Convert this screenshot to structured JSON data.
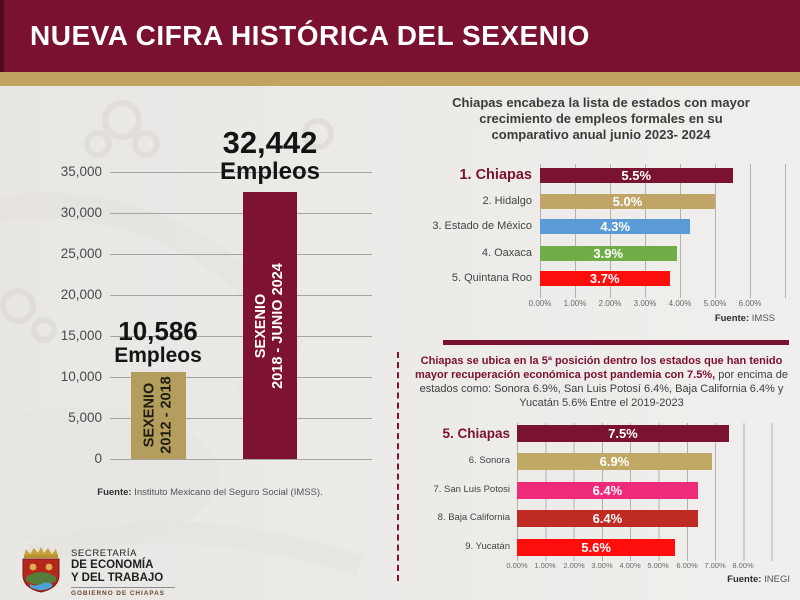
{
  "colors": {
    "header_bg": "#7a1130",
    "gold": "#c2a35f",
    "maroon": "#7a1130"
  },
  "header": {
    "title": "NUEVA CIFRA HISTÓRICA DEL SEXENIO"
  },
  "left_chart": {
    "ymax": 35000,
    "y_ticks": [
      "35,000",
      "30,000",
      "25,000",
      "20,000",
      "15,000",
      "10,000",
      "5,000",
      "0"
    ],
    "bars": [
      {
        "value": 10586,
        "value_label": "10,586",
        "unit_label": "Empleos",
        "bar_label_line1": "SEXENIO",
        "bar_label_line2": "2012 - 2018",
        "color": "#b49e5d",
        "text_color": "#1f1c12"
      },
      {
        "value": 32442,
        "value_label": "32,442",
        "unit_label": "Empleos",
        "bar_label_line1": "SEXENIO",
        "bar_label_line2": "2018 - JUNIO 2024",
        "color": "#7d1231",
        "text_color": "#ffffff"
      }
    ],
    "source_bold": "Fuente:",
    "source_text": " Instituto Mexicano del Seguro Social (IMSS)."
  },
  "top_chart": {
    "title_lines": [
      "Chiapas encabeza la lista de estados con mayor",
      "crecimiento de empleos formales en su",
      "comparativo anual junio 2023- 2024"
    ],
    "xmax": 6,
    "rows": [
      {
        "label": "1. Chiapas",
        "value": 5.5,
        "value_label": "5.5%",
        "color": "#7a132f",
        "label_color": "#7a1130"
      },
      {
        "label": "2. Hidalgo",
        "value": 5.0,
        "value_label": "5.0%",
        "color": "#c0a468",
        "label_color": "#444444"
      },
      {
        "label": "3. Estado de México",
        "value": 4.3,
        "value_label": "4.3%",
        "color": "#5b9bd5",
        "label_color": "#444444"
      },
      {
        "label": "4. Oaxaca",
        "value": 3.9,
        "value_label": "3.9%",
        "color": "#6fad47",
        "label_color": "#444444"
      },
      {
        "label": "5. Quintana Roo",
        "value": 3.7,
        "value_label": "3.7%",
        "color": "#fe0d0d",
        "label_color": "#444444"
      }
    ],
    "x_ticks": [
      "0.00%",
      "1.00%",
      "2.00%",
      "3.00%",
      "4.00%",
      "5.00%",
      "6.00%"
    ],
    "source_bold": "Fuente:",
    "source_text": " IMSS"
  },
  "middle_text": {
    "bold": "Chiapas se ubica en la 5ª posición dentro los estados que han tenido mayor recuperación económica post pandemia con 7.5%,",
    "regular": " por encima de estados como: Sonora 6.9%, San Luis Potosí 6.4%, Baja California 6.4% y Yucatán 5.6% Entre el 2019-2023"
  },
  "bottom_chart": {
    "xmax": 8,
    "rows": [
      {
        "label": "5. Chiapas",
        "value": 7.5,
        "value_label": "7.5%",
        "color": "#7a132f",
        "label_color": "#7a1130"
      },
      {
        "label": "6. Sonora",
        "value": 6.9,
        "value_label": "6.9%",
        "color": "#bfa964",
        "label_color": "#444444"
      },
      {
        "label": "7. San Luis Potosi",
        "value": 6.4,
        "value_label": "6.4%",
        "color": "#ee2a7b",
        "label_color": "#444444"
      },
      {
        "label": "8. Baja California",
        "value": 6.4,
        "value_label": "6.4%",
        "color": "#bf2a22",
        "label_color": "#444444"
      },
      {
        "label": "9. Yucatán",
        "value": 5.6,
        "value_label": "5.6%",
        "color": "#fe0d0d",
        "label_color": "#444444"
      }
    ],
    "x_ticks": [
      "0.00%",
      "1.00%",
      "2.00%",
      "3.00%",
      "4.00%",
      "5.00%",
      "6.00%",
      "7.00%",
      "8.00%"
    ],
    "source_bold": "Fuente:",
    "source_text": " INEGI"
  },
  "logo": {
    "line1": "SECRETARÍA",
    "line2": "DE ECONOMÍA",
    "line3": "Y DEL TRABAJO",
    "line4": "GOBIERNO DE CHIAPAS"
  },
  "chart_data": [
    {
      "type": "bar",
      "categories": [
        "SEXENIO 2012 - 2018",
        "SEXENIO 2018 - JUNIO 2024"
      ],
      "values": [
        10586,
        32442
      ],
      "title": "",
      "xlabel": "",
      "ylabel": "Empleos",
      "ylim": [
        0,
        35000
      ],
      "grid": true,
      "bar_colors": [
        "#b49e5d",
        "#7d1231"
      ],
      "data_labels": [
        "10,586 Empleos",
        "32,442 Empleos"
      ],
      "source": "Fuente: Instituto Mexicano del Seguro Social (IMSS)."
    },
    {
      "type": "bar",
      "orientation": "horizontal",
      "title": "Chiapas encabeza la lista de estados con mayor crecimiento de empleos formales en su comparativo anual junio 2023- 2024",
      "categories": [
        "1. Chiapas",
        "2. Hidalgo",
        "3. Estado de México",
        "4. Oaxaca",
        "5. Quintana Roo"
      ],
      "values": [
        5.5,
        5.0,
        4.3,
        3.9,
        3.7
      ],
      "xlim": [
        0,
        6
      ],
      "x_tick_format": "0.00%",
      "grid": true,
      "bar_colors": [
        "#7a132f",
        "#c0a468",
        "#5b9bd5",
        "#6fad47",
        "#fe0d0d"
      ],
      "source": "Fuente: IMSS"
    },
    {
      "type": "bar",
      "orientation": "horizontal",
      "title": "Chiapas se ubica en la 5ª posición dentro los estados que han tenido mayor recuperación económica post pandemia con 7.5%, por encima de estados como: Sonora 6.9%, San Luis Potosí 6.4%, Baja California 6.4% y Yucatán 5.6% Entre el 2019-2023",
      "categories": [
        "5. Chiapas",
        "6. Sonora",
        "7. San Luis Potosi",
        "8. Baja California",
        "9. Yucatán"
      ],
      "values": [
        7.5,
        6.9,
        6.4,
        6.4,
        5.6
      ],
      "xlim": [
        0,
        8
      ],
      "x_tick_format": "0.00%",
      "grid": true,
      "bar_colors": [
        "#7a132f",
        "#bfa964",
        "#ee2a7b",
        "#bf2a22",
        "#fe0d0d"
      ],
      "source": "Fuente: INEGI"
    }
  ]
}
